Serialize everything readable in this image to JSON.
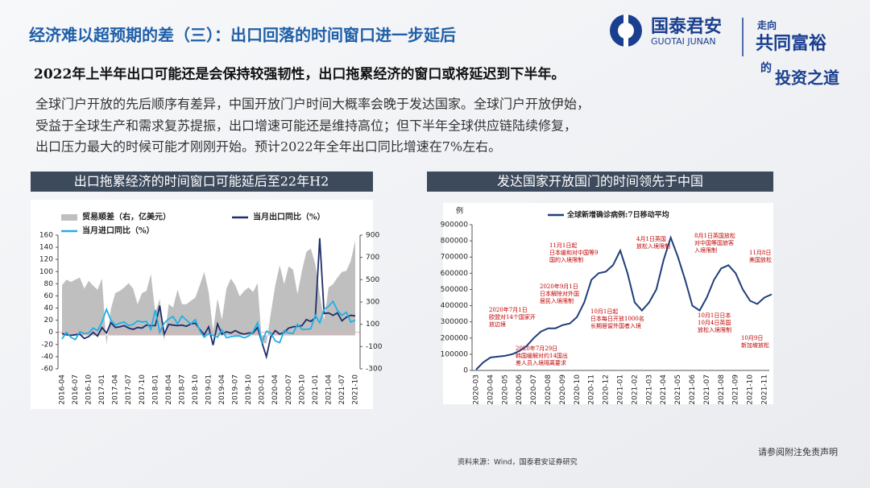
{
  "header": {
    "title": "经济难以超预期的差（三）：出口回落的时间窗口进一步延后",
    "logo_cn": "国泰君安",
    "logo_en": "GUOTAI JUNAN",
    "slogan": [
      "走向",
      "共同富裕",
      "的",
      "投资之道"
    ]
  },
  "lead": "2022年上半年出口可能还是会保持较强韧性，出口拖累经济的窗口或将延迟到下半年。",
  "body": [
    "全球门户开放的先后顺序有差异，中国开放门户时间大概率会晚于发达国家。全球门户开放伊始，",
    "受益于全球生产和需求复苏提振，出口增速可能还是维持高位；但下半年全球供应链陆续修复，",
    "出口压力最大的时候可能才刚刚开始。预计2022年全年出口同比增速在7%左右。"
  ],
  "chart_data": [
    {
      "type": "combo",
      "title": "出口拖累经济的时间窗口可能延后至22年H2",
      "categories": [
        "2016-04",
        null,
        null,
        "2016-07",
        null,
        null,
        "2016-10",
        null,
        null,
        "2017-01",
        null,
        null,
        "2017-04",
        null,
        null,
        "2017-07",
        null,
        null,
        "2017-10",
        null,
        null,
        "2018-01",
        null,
        null,
        "2018-04",
        null,
        null,
        "2018-07",
        null,
        null,
        "2018-10",
        null,
        null,
        "2019-01",
        null,
        null,
        "2019-04",
        null,
        null,
        "2019-07",
        null,
        null,
        "2019-10",
        null,
        null,
        "2020-01",
        null,
        null,
        "2020-04",
        null,
        null,
        "2020-07",
        null,
        null,
        "2020-10",
        null,
        null,
        "2021-01",
        null,
        null,
        "2021-04",
        null,
        null,
        "2021-07",
        null,
        null,
        "2021-10"
      ],
      "series": [
        {
          "name": "贸易顺差（右，亿美元）",
          "type": "area",
          "axis": "y2",
          "color": "#bfbfbf",
          "values": [
            450,
            500,
            480,
            500,
            520,
            420,
            490,
            446,
            410,
            510,
            -90,
            240,
            380,
            400,
            430,
            470,
            420,
            280,
            380,
            400,
            550,
            200,
            330,
            -50,
            280,
            250,
            410,
            280,
            280,
            310,
            340,
            450,
            570,
            390,
            40,
            330,
            140,
            420,
            510,
            450,
            350,
            400,
            430,
            390,
            470,
            -70,
            -70,
            200,
            450,
            630,
            460,
            620,
            590,
            370,
            580,
            750,
            780,
            640,
            370,
            140,
            430,
            460,
            520,
            570,
            580,
            670,
            850
          ]
        },
        {
          "name": "当月出口同比（%）",
          "type": "line",
          "color": "#1f2d6b",
          "values": [
            -2,
            -4,
            -5,
            -4,
            -3,
            -10,
            -7,
            0,
            -6,
            8,
            -1,
            16,
            8,
            9,
            11,
            7,
            5,
            8,
            7,
            12,
            11,
            11,
            44,
            -3,
            13,
            12,
            11,
            12,
            10,
            14,
            15,
            5,
            -4,
            9,
            -21,
            14,
            -3,
            1,
            -1,
            3,
            -1,
            -3,
            -1,
            -1,
            8,
            -17,
            -40,
            -7,
            3,
            -3,
            0,
            7,
            9,
            10,
            11,
            21,
            18,
            24,
            155,
            31,
            32,
            28,
            32,
            19,
            25,
            28,
            27
          ]
        },
        {
          "name": "当月进口同比（%）",
          "type": "line",
          "color": "#1fb0e6",
          "values": [
            -11,
            0,
            -8,
            -12,
            1,
            -2,
            -1,
            7,
            3,
            17,
            38,
            20,
            12,
            15,
            17,
            11,
            13,
            19,
            17,
            18,
            5,
            37,
            0,
            15,
            22,
            26,
            14,
            27,
            20,
            14,
            21,
            3,
            -8,
            -2,
            -5,
            -8,
            4,
            -9,
            -7,
            -6,
            -6,
            -9,
            -6,
            1,
            16,
            -16,
            2,
            -1,
            -14,
            -17,
            3,
            -1,
            -2,
            13,
            5,
            5,
            6,
            28,
            16,
            38,
            43,
            51,
            36,
            28,
            33,
            17,
            20
          ]
        }
      ],
      "ylim": [
        -60,
        160
      ],
      "yticks": [
        -60,
        -40,
        -20,
        0,
        20,
        40,
        60,
        80,
        100,
        120,
        140,
        160
      ],
      "y2lim": [
        -300,
        900
      ],
      "y2ticks": [
        -300,
        -100,
        100,
        300,
        500,
        700,
        900
      ]
    },
    {
      "type": "line",
      "title": "发达国家开放国门的时间领先于中国",
      "y_label": "例",
      "categories": [
        "2020-03",
        null,
        "2020-04",
        null,
        "2020-05",
        null,
        "2020-06",
        null,
        "2020-07",
        null,
        "2020-08",
        null,
        "2020-09",
        null,
        "2020-10",
        null,
        "2020-11",
        null,
        "2020-12",
        null,
        "2021-01",
        null,
        "2021-02",
        null,
        "2021-03",
        null,
        "2021-04",
        null,
        "2021-05",
        null,
        "2021-06",
        null,
        "2021-07",
        null,
        "2021-08",
        null,
        "2021-09",
        null,
        "2021-10",
        null,
        "2021-11",
        null
      ],
      "series": [
        {
          "name": "全球新增确诊病例:7日移动平均",
          "color": "#1f3f7a",
          "values": [
            5000,
            50000,
            80000,
            85000,
            90000,
            100000,
            120000,
            150000,
            200000,
            240000,
            260000,
            260000,
            280000,
            290000,
            330000,
            420000,
            560000,
            600000,
            610000,
            650000,
            740000,
            600000,
            420000,
            370000,
            420000,
            500000,
            680000,
            820000,
            700000,
            560000,
            400000,
            370000,
            450000,
            560000,
            630000,
            650000,
            600000,
            500000,
            430000,
            410000,
            450000,
            470000
          ]
        }
      ],
      "ylim": [
        0,
        900000
      ],
      "yticks": [
        0,
        100000,
        200000,
        300000,
        400000,
        500000,
        600000,
        700000,
        800000,
        900000
      ],
      "annotations": [
        {
          "lines": [
            "11月1日起",
            "日本缓和对中国等9",
            "国的入境限制"
          ]
        },
        {
          "lines": [
            "2020年9月1日",
            "日本解除对外国",
            "居民入境限制"
          ]
        },
        {
          "lines": [
            "2020年7月1日",
            "欧盟对14个国家开",
            "放边境"
          ]
        },
        {
          "lines": [
            "2020年7月29日",
            "韩国缓解对约14国出",
            "差人员入境隔离要求"
          ]
        },
        {
          "lines": [
            "10月1日起",
            "日本每日开放1000名",
            "长期居留外国者入境"
          ]
        },
        {
          "lines": [
            "4月1日英国",
            "放松入境限制"
          ]
        },
        {
          "lines": [
            "8月1日英国放松",
            "对中国等国旅客",
            "入境限制"
          ]
        },
        {
          "lines": [
            "11月8日",
            "美国放松"
          ]
        },
        {
          "lines": [
            "10月1日日本",
            "10月4日英国",
            "放松入境限制"
          ]
        },
        {
          "lines": [
            "10月9日",
            "新加坡放松"
          ]
        }
      ]
    }
  ],
  "source": "资料来源：Wind，国泰君安证券研究",
  "disclaimer": "请参阅附注免责声明"
}
